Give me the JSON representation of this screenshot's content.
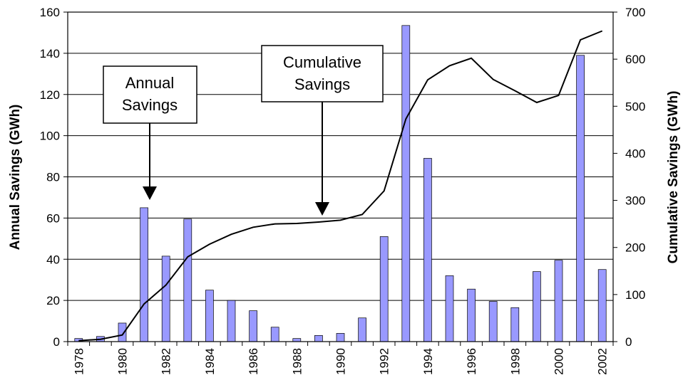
{
  "chart_data": {
    "type": "bar+line",
    "title": "",
    "xlabel": "",
    "ylabel": "Annual Savings (GWh)",
    "y2label": "Cumulative Savings (GWh)",
    "ylim": [
      0,
      160
    ],
    "y2lim": [
      0,
      700
    ],
    "yticks": [
      "0",
      "20",
      "40",
      "60",
      "80",
      "100",
      "120",
      "140",
      "160"
    ],
    "y2ticks": [
      "0",
      "100",
      "200",
      "300",
      "400",
      "500",
      "600",
      "700"
    ],
    "xtick_labels": [
      "1978",
      "1980",
      "1982",
      "1984",
      "1986",
      "1988",
      "1990",
      "1992",
      "1994",
      "1996",
      "1998",
      "2000",
      "2002"
    ],
    "grid": "horizontal major gridlines",
    "years": [
      1978,
      1979,
      1980,
      1981,
      1982,
      1983,
      1984,
      1985,
      1986,
      1987,
      1988,
      1989,
      1990,
      1991,
      1992,
      1993,
      1994,
      1995,
      1996,
      1997,
      1998,
      1999,
      2000,
      2001,
      2002
    ],
    "series": [
      {
        "name": "Annual Savings",
        "type": "bar",
        "axis": "left",
        "color": "#9999ff",
        "values": [
          1.5,
          2.5,
          9,
          65,
          41.5,
          59.5,
          25,
          20,
          15,
          7,
          1.5,
          3,
          4,
          11.5,
          51,
          153.5,
          89,
          32,
          25.5,
          19.5,
          16.5,
          34,
          39.5,
          139,
          35
        ]
      },
      {
        "name": "Cumulative Savings",
        "type": "line",
        "axis": "right",
        "color": "#000000",
        "values": [
          2,
          5,
          14,
          80,
          120,
          180,
          207,
          228,
          243,
          250,
          251,
          254,
          258,
          270,
          320,
          473,
          556,
          586,
          602,
          557,
          533,
          508,
          523,
          641,
          660
        ]
      }
    ],
    "annotations": [
      {
        "lines": [
          "Annual",
          "Savings"
        ],
        "points_to": "1981"
      },
      {
        "lines": [
          "Cumulative",
          "Savings"
        ],
        "points_to": "1989"
      }
    ]
  }
}
